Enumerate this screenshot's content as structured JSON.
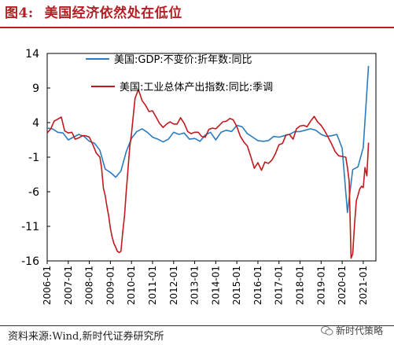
{
  "header": {
    "figure_number": "图4:",
    "title": "美国经济依然处在低位"
  },
  "footer": {
    "source": "资料来源:Wind,新时代证券研究所",
    "watermark": "新时代策略"
  },
  "colors": {
    "gdp": "#2b7bbf",
    "ip": "#c0191e",
    "title": "#b41f24"
  },
  "chart_data": {
    "type": "line",
    "ylim": [
      -16,
      14
    ],
    "yticks": [
      14,
      9,
      4,
      -1,
      -6,
      -11,
      -16
    ],
    "xlim": [
      2006.0,
      2021.6
    ],
    "xticks": [
      "2006-01",
      "2007-01",
      "2008-01",
      "2009-01",
      "2010-01",
      "2011-01",
      "2012-01",
      "2013-01",
      "2014-01",
      "2015-01",
      "2016-01",
      "2017-01",
      "2018-01",
      "2019-01",
      "2020-01",
      "2021-01"
    ],
    "legend": [
      "美国:GDP:不变价:折年数:同比",
      "美国:工业总体产出指数:同比:季调"
    ],
    "series": [
      {
        "name": "美国:GDP:不变价:折年数:同比",
        "x": [
          2006.0,
          2006.25,
          2006.5,
          2006.75,
          2007.0,
          2007.25,
          2007.5,
          2007.75,
          2008.0,
          2008.25,
          2008.5,
          2008.75,
          2009.0,
          2009.25,
          2009.5,
          2009.75,
          2010.0,
          2010.25,
          2010.5,
          2010.75,
          2011.0,
          2011.25,
          2011.5,
          2011.75,
          2012.0,
          2012.25,
          2012.5,
          2012.75,
          2013.0,
          2013.25,
          2013.5,
          2013.75,
          2014.0,
          2014.25,
          2014.5,
          2014.75,
          2015.0,
          2015.25,
          2015.5,
          2015.75,
          2016.0,
          2016.25,
          2016.5,
          2016.75,
          2017.0,
          2017.25,
          2017.5,
          2017.75,
          2018.0,
          2018.25,
          2018.5,
          2018.75,
          2019.0,
          2019.25,
          2019.5,
          2019.75,
          2020.0,
          2020.25,
          2020.5,
          2020.75,
          2021.0,
          2021.25
        ],
        "y": [
          3.2,
          3.1,
          2.6,
          2.5,
          1.5,
          1.9,
          2.3,
          2.0,
          1.3,
          1.0,
          0.0,
          -2.7,
          -3.2,
          -3.9,
          -3.0,
          -0.2,
          1.7,
          2.7,
          3.1,
          2.6,
          1.9,
          1.6,
          1.2,
          1.6,
          2.6,
          2.3,
          2.5,
          1.6,
          1.7,
          1.3,
          2.2,
          2.6,
          1.5,
          2.6,
          2.9,
          2.7,
          3.6,
          3.4,
          2.4,
          1.9,
          1.4,
          1.3,
          1.4,
          2.0,
          1.9,
          2.1,
          2.3,
          2.7,
          2.7,
          2.9,
          3.1,
          2.9,
          2.3,
          2.0,
          2.1,
          2.3,
          0.3,
          -9.0,
          -2.8,
          -2.4,
          0.4,
          12.2
        ]
      },
      {
        "name": "美国:工业总体产出指数:同比:季调",
        "x": [
          2006.0,
          2006.17,
          2006.33,
          2006.5,
          2006.67,
          2006.83,
          2007.0,
          2007.17,
          2007.33,
          2007.5,
          2007.67,
          2007.83,
          2008.0,
          2008.17,
          2008.33,
          2008.5,
          2008.58,
          2008.67,
          2008.75,
          2008.83,
          2008.92,
          2009.0,
          2009.08,
          2009.17,
          2009.25,
          2009.33,
          2009.42,
          2009.5,
          2009.58,
          2009.67,
          2009.75,
          2009.83,
          2009.92,
          2010.0,
          2010.17,
          2010.33,
          2010.5,
          2010.67,
          2010.83,
          2011.0,
          2011.17,
          2011.33,
          2011.5,
          2011.67,
          2011.83,
          2012.0,
          2012.17,
          2012.33,
          2012.5,
          2012.67,
          2012.83,
          2013.0,
          2013.17,
          2013.33,
          2013.5,
          2013.67,
          2013.83,
          2014.0,
          2014.17,
          2014.33,
          2014.5,
          2014.67,
          2014.83,
          2015.0,
          2015.17,
          2015.33,
          2015.5,
          2015.67,
          2015.83,
          2016.0,
          2016.17,
          2016.33,
          2016.5,
          2016.67,
          2016.83,
          2017.0,
          2017.17,
          2017.33,
          2017.5,
          2017.67,
          2017.83,
          2018.0,
          2018.17,
          2018.33,
          2018.5,
          2018.67,
          2018.83,
          2019.0,
          2019.17,
          2019.33,
          2019.5,
          2019.67,
          2019.83,
          2020.0,
          2020.17,
          2020.25,
          2020.33,
          2020.42,
          2020.5,
          2020.58,
          2020.67,
          2020.75,
          2020.83,
          2020.92,
          2021.0,
          2021.08,
          2021.17,
          2021.25
        ],
        "y": [
          2.5,
          3.1,
          4.2,
          4.5,
          4.8,
          2.8,
          2.5,
          2.6,
          1.6,
          1.8,
          2.1,
          2.1,
          1.9,
          0.8,
          -0.4,
          -1.0,
          -2.5,
          -5.5,
          -6.5,
          -8.0,
          -9.5,
          -11.3,
          -12.5,
          -13.5,
          -14.0,
          -14.6,
          -14.8,
          -14.6,
          -12.0,
          -9.5,
          -6.0,
          -3.0,
          0.5,
          2.4,
          7.5,
          8.8,
          7.2,
          6.5,
          5.6,
          5.7,
          4.8,
          3.9,
          3.3,
          3.8,
          4.1,
          3.8,
          3.8,
          4.7,
          3.9,
          2.7,
          2.4,
          2.6,
          2.6,
          2.0,
          1.9,
          3.0,
          3.2,
          3.1,
          3.6,
          4.1,
          4.2,
          4.6,
          4.4,
          3.4,
          2.0,
          1.2,
          0.6,
          -1.0,
          -2.6,
          -1.8,
          -2.9,
          -1.7,
          -1.9,
          -1.4,
          -0.5,
          0.8,
          1.0,
          2.2,
          2.3,
          1.6,
          3.1,
          3.5,
          3.6,
          3.4,
          4.2,
          4.9,
          4.1,
          3.6,
          2.8,
          1.9,
          0.9,
          -0.2,
          -0.8,
          -0.9,
          -1.0,
          -2.5,
          -4.5,
          -15.6,
          -15.0,
          -10.9,
          -7.3,
          -6.5,
          -5.6,
          -5.2,
          -5.4,
          -2.5,
          -3.7,
          1.1
        ]
      }
    ]
  }
}
